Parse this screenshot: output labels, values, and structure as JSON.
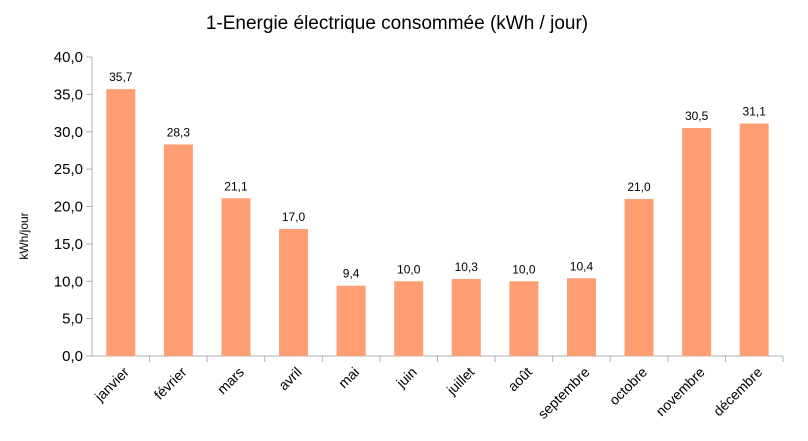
{
  "chart_data": {
    "type": "bar",
    "title": "1-Energie électrique consommée (kWh / jour)",
    "ylabel": "kWh/jour",
    "xlabel": "",
    "categories": [
      "janvier",
      "février",
      "mars",
      "avril",
      "mai",
      "juin",
      "juillet",
      "août",
      "septembre",
      "octobre",
      "novembre",
      "décembre"
    ],
    "values": [
      35.7,
      28.3,
      21.1,
      17.0,
      9.4,
      10.0,
      10.3,
      10.0,
      10.4,
      21.0,
      30.5,
      31.1
    ],
    "data_labels": [
      "35,7",
      "28,3",
      "21,1",
      "17,0",
      "9,4",
      "10,0",
      "10,3",
      "10,0",
      "10,4",
      "21,0",
      "30,5",
      "31,1"
    ],
    "yticks": [
      "0,0",
      "5,0",
      "10,0",
      "15,0",
      "20,0",
      "25,0",
      "30,0",
      "35,0",
      "40,0"
    ],
    "ylim": [
      0,
      40
    ],
    "grid": false,
    "legend": "none",
    "bar_color": "#ff9e73"
  }
}
